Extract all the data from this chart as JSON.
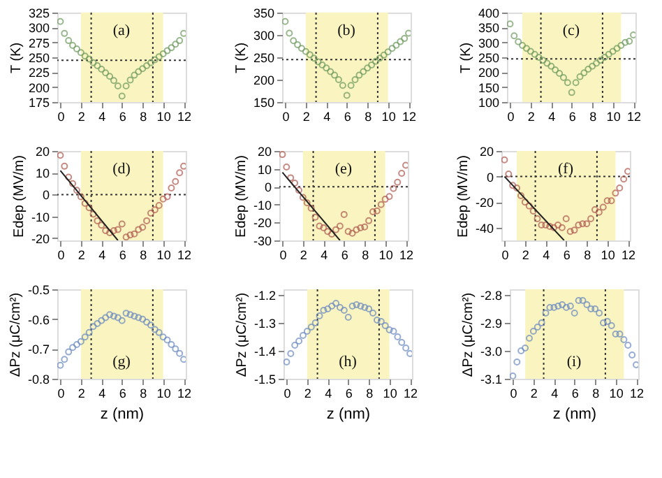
{
  "chart_data": [
    {
      "type": "scatter",
      "ylabel": "T (K)",
      "xlim": [
        -0.3,
        12.2
      ],
      "ylim": [
        175,
        325
      ],
      "xticks": [
        0,
        2,
        4,
        6,
        8,
        10,
        12
      ],
      "yticks": [
        175,
        200,
        225,
        250,
        275,
        300,
        325
      ],
      "marker": "circle",
      "annotations": [
        "(a)"
      ],
      "bands": [
        {
          "axis": "x",
          "from": 2,
          "to": 10,
          "color": "#faf5c0"
        }
      ],
      "ref_lines": [
        {
          "axis": "x",
          "value": 3,
          "line_style": "dotted",
          "color": "#333333"
        },
        {
          "axis": "x",
          "value": 9,
          "line_style": "dotted",
          "color": "#333333"
        },
        {
          "axis": "y",
          "value": 245,
          "line_style": "dotted",
          "color": "#333333"
        }
      ],
      "x": [
        0,
        0.4,
        0.8,
        1.2,
        1.6,
        2.0,
        2.4,
        2.8,
        3.2,
        3.6,
        4.0,
        4.4,
        4.8,
        5.2,
        5.6,
        6.0,
        6.4,
        6.8,
        7.2,
        7.6,
        8.0,
        8.4,
        8.8,
        9.2,
        9.6,
        10.0,
        10.4,
        10.8,
        11.2,
        11.6,
        12.0
      ],
      "series": [
        {
          "color": "#6e9a5e",
          "values": [
            310,
            290,
            278,
            270,
            264,
            258,
            252,
            247,
            241,
            236,
            230,
            224,
            218,
            211,
            202,
            185,
            202,
            212,
            220,
            226,
            231,
            236,
            241,
            246,
            251,
            256,
            261,
            266,
            272,
            278,
            290
          ]
        }
      ]
    },
    {
      "type": "scatter",
      "ylabel": "T (K)",
      "xlim": [
        -0.3,
        12.2
      ],
      "ylim": [
        150,
        350
      ],
      "xticks": [
        0,
        2,
        4,
        6,
        8,
        10,
        12
      ],
      "yticks": [
        150,
        200,
        250,
        300,
        350
      ],
      "marker": "circle",
      "annotations": [
        "(b)"
      ],
      "bands": [
        {
          "axis": "x",
          "from": 2,
          "to": 10,
          "color": "#faf5c0"
        }
      ],
      "ref_lines": [
        {
          "axis": "x",
          "value": 3,
          "line_style": "dotted",
          "color": "#333333"
        },
        {
          "axis": "x",
          "value": 9,
          "line_style": "dotted",
          "color": "#333333"
        },
        {
          "axis": "y",
          "value": 245,
          "line_style": "dotted",
          "color": "#333333"
        }
      ],
      "x": [
        0,
        0.4,
        0.8,
        1.2,
        1.6,
        2.0,
        2.4,
        2.8,
        3.2,
        3.6,
        4.0,
        4.4,
        4.8,
        5.2,
        5.6,
        6.0,
        6.4,
        6.8,
        7.2,
        7.6,
        8.0,
        8.4,
        8.8,
        9.2,
        9.6,
        10.0,
        10.4,
        10.8,
        11.2,
        11.6,
        12.0
      ],
      "series": [
        {
          "color": "#6e9a5e",
          "values": [
            330,
            304,
            287,
            278,
            270,
            263,
            256,
            248,
            240,
            233,
            226,
            218,
            210,
            200,
            187,
            165,
            187,
            200,
            210,
            218,
            226,
            233,
            241,
            248,
            255,
            262,
            270,
            277,
            285,
            292,
            304
          ]
        }
      ]
    },
    {
      "type": "scatter",
      "ylabel": "T (K)",
      "xlim": [
        -0.3,
        12.2
      ],
      "ylim": [
        100,
        400
      ],
      "xticks": [
        0,
        2,
        4,
        6,
        8,
        10,
        12
      ],
      "yticks": [
        100,
        150,
        200,
        250,
        300,
        350,
        400
      ],
      "marker": "circle",
      "annotations": [
        "(c)"
      ],
      "bands": [
        {
          "axis": "x",
          "from": 1.2,
          "to": 10.8,
          "color": "#faf5c0"
        }
      ],
      "ref_lines": [
        {
          "axis": "x",
          "value": 3,
          "line_style": "dotted",
          "color": "#333333"
        },
        {
          "axis": "x",
          "value": 9,
          "line_style": "dotted",
          "color": "#333333"
        },
        {
          "axis": "y",
          "value": 245,
          "line_style": "dotted",
          "color": "#333333"
        }
      ],
      "x": [
        0,
        0.4,
        0.8,
        1.2,
        1.6,
        2.0,
        2.4,
        2.8,
        3.2,
        3.6,
        4.0,
        4.4,
        4.8,
        5.2,
        5.6,
        6.0,
        6.4,
        6.8,
        7.2,
        7.6,
        8.0,
        8.4,
        8.8,
        9.2,
        9.6,
        10.0,
        10.4,
        10.8,
        11.2,
        11.6,
        12.0
      ],
      "series": [
        {
          "color": "#6e9a5e",
          "values": [
            362,
            322,
            302,
            290,
            280,
            270,
            260,
            250,
            240,
            230,
            220,
            208,
            196,
            182,
            165,
            132,
            165,
            185,
            198,
            210,
            220,
            230,
            240,
            250,
            260,
            270,
            280,
            290,
            300,
            304,
            325
          ]
        }
      ]
    },
    {
      "type": "scatter",
      "ylabel": "Edep (MV/m)",
      "xlim": [
        -0.3,
        12.2
      ],
      "ylim": [
        -21,
        20
      ],
      "xticks": [
        0,
        2,
        4,
        6,
        8,
        10,
        12
      ],
      "yticks": [
        -20,
        -10,
        0,
        10,
        20
      ],
      "marker": "circle",
      "annotations": [
        "(d)"
      ],
      "bands": [
        {
          "axis": "x",
          "from": 2,
          "to": 10,
          "color": "#faf5c0"
        }
      ],
      "ref_lines": [
        {
          "axis": "x",
          "value": 3,
          "line_style": "dotted",
          "color": "#333333"
        },
        {
          "axis": "x",
          "value": 9,
          "line_style": "dotted",
          "color": "#333333"
        },
        {
          "axis": "y",
          "value": 0,
          "line_style": "dotted",
          "color": "#333333"
        }
      ],
      "x": [
        0,
        0.4,
        0.8,
        1.2,
        1.6,
        2.0,
        2.4,
        2.8,
        3.2,
        3.6,
        4.0,
        4.4,
        4.8,
        5.2,
        5.6,
        6.0,
        6.4,
        6.8,
        7.2,
        7.6,
        8.0,
        8.4,
        8.8,
        9.2,
        9.6,
        10.0,
        10.4,
        10.8,
        11.2,
        11.6,
        12.0
      ],
      "series": [
        {
          "color": "#b05a50",
          "values": [
            18,
            13,
            8,
            5,
            2,
            -1,
            -4,
            -6,
            -9,
            -12,
            -14,
            -16.5,
            -17.5,
            -16.5,
            -16,
            -13.5,
            -19.5,
            -18.5,
            -18,
            -16,
            -15,
            -12,
            -8.5,
            -7,
            -5,
            -2,
            -1,
            3,
            6,
            10,
            13
          ]
        },
        {
          "type": "line",
          "marker": "none",
          "color": "#222222",
          "x": [
            0,
            5.6
          ],
          "values": [
            11,
            -21
          ]
        }
      ]
    },
    {
      "type": "scatter",
      "ylabel": "Edep (MV/m)",
      "xlim": [
        -0.3,
        12.2
      ],
      "ylim": [
        -30,
        20
      ],
      "xticks": [
        0,
        2,
        4,
        6,
        8,
        10,
        12
      ],
      "yticks": [
        -30,
        -20,
        -10,
        0,
        10,
        20
      ],
      "marker": "circle",
      "annotations": [
        "(e)"
      ],
      "bands": [
        {
          "axis": "x",
          "from": 2,
          "to": 10,
          "color": "#faf5c0"
        }
      ],
      "ref_lines": [
        {
          "axis": "x",
          "value": 3,
          "line_style": "dotted",
          "color": "#333333"
        },
        {
          "axis": "x",
          "value": 9,
          "line_style": "dotted",
          "color": "#333333"
        },
        {
          "axis": "y",
          "value": 0,
          "line_style": "dotted",
          "color": "#333333"
        }
      ],
      "x": [
        0,
        0.4,
        0.8,
        1.2,
        1.6,
        2.0,
        2.4,
        2.8,
        3.2,
        3.6,
        4.0,
        4.4,
        4.8,
        5.2,
        5.6,
        6.0,
        6.4,
        6.8,
        7.2,
        7.6,
        8.0,
        8.4,
        8.8,
        9.2,
        9.6,
        10.0,
        10.4,
        10.8,
        11.2,
        11.6,
        12.0
      ],
      "series": [
        {
          "color": "#b05a50",
          "values": [
            18,
            11,
            5,
            2,
            -2,
            -6,
            -9,
            -12,
            -17,
            -22,
            -23,
            -25,
            -26.5,
            -24,
            -22,
            -15.5,
            -25,
            -26,
            -24,
            -23,
            -22.5,
            -19,
            -14,
            -13.5,
            -10,
            -7,
            -5.5,
            -1,
            2.5,
            7.5,
            12
          ]
        },
        {
          "type": "line",
          "marker": "none",
          "color": "#222222",
          "x": [
            0,
            5.6
          ],
          "values": [
            8,
            -30
          ]
        }
      ]
    },
    {
      "type": "scatter",
      "ylabel": "Edep (MV/m)",
      "xlim": [
        -0.3,
        12.2
      ],
      "ylim": [
        -50,
        20
      ],
      "xticks": [
        0,
        2,
        4,
        6,
        8,
        10,
        12
      ],
      "yticks": [
        -40,
        -20,
        0,
        20
      ],
      "marker": "circle",
      "annotations": [
        "(f)"
      ],
      "bands": [
        {
          "axis": "x",
          "from": 1.2,
          "to": 10.8,
          "color": "#faf5c0"
        }
      ],
      "ref_lines": [
        {
          "axis": "x",
          "value": 3,
          "line_style": "dotted",
          "color": "#333333"
        },
        {
          "axis": "x",
          "value": 9,
          "line_style": "dotted",
          "color": "#333333"
        },
        {
          "axis": "y",
          "value": 0,
          "line_style": "dotted",
          "color": "#333333"
        }
      ],
      "x": [
        0,
        0.4,
        0.8,
        1.2,
        1.6,
        2.0,
        2.4,
        2.8,
        3.2,
        3.6,
        4.0,
        4.4,
        4.8,
        5.2,
        5.6,
        6.0,
        6.4,
        6.8,
        7.2,
        7.6,
        8.0,
        8.4,
        8.8,
        9.2,
        9.6,
        10.0,
        10.4,
        10.8,
        11.2,
        11.6,
        12.0
      ],
      "series": [
        {
          "color": "#b05a50",
          "values": [
            13,
            2,
            -7,
            -9,
            -15,
            -20,
            -23,
            -27,
            -33,
            -38,
            -38,
            -39,
            -40,
            -38,
            -40,
            -33,
            -43,
            -42,
            -38,
            -37,
            -37,
            -33,
            -26,
            -28,
            -24,
            -19,
            -19,
            -13,
            -9,
            -2,
            4
          ]
        },
        {
          "type": "line",
          "marker": "none",
          "color": "#222222",
          "x": [
            0,
            5.8
          ],
          "values": [
            0,
            -50
          ]
        }
      ]
    },
    {
      "type": "scatter",
      "ylabel": "ΔPz (μC/cm²)",
      "xlabel": "z (nm)",
      "xlim": [
        -0.3,
        12.2
      ],
      "ylim": [
        -0.8,
        -0.5
      ],
      "xticks": [
        0,
        2,
        4,
        6,
        8,
        10,
        12
      ],
      "yticks": [
        -0.8,
        -0.7,
        -0.6,
        -0.5
      ],
      "marker": "circle",
      "annotations": [
        "(g)"
      ],
      "bands": [
        {
          "axis": "x",
          "from": 2,
          "to": 10,
          "color": "#faf5c0"
        }
      ],
      "ref_lines": [
        {
          "axis": "x",
          "value": 3,
          "line_style": "dotted",
          "color": "#333333"
        },
        {
          "axis": "x",
          "value": 9,
          "line_style": "dotted",
          "color": "#333333"
        }
      ],
      "x": [
        0,
        0.4,
        0.8,
        1.2,
        1.6,
        2.0,
        2.4,
        2.8,
        3.2,
        3.6,
        4.0,
        4.4,
        4.8,
        5.2,
        5.6,
        6.0,
        6.4,
        6.8,
        7.2,
        7.6,
        8.0,
        8.4,
        8.8,
        9.2,
        9.6,
        10.0,
        10.4,
        10.8,
        11.2,
        11.6,
        12.0
      ],
      "series": [
        {
          "color": "#6a8ac0",
          "values": [
            -0.755,
            -0.735,
            -0.71,
            -0.695,
            -0.685,
            -0.675,
            -0.66,
            -0.645,
            -0.625,
            -0.615,
            -0.605,
            -0.595,
            -0.585,
            -0.59,
            -0.595,
            -0.605,
            -0.58,
            -0.585,
            -0.59,
            -0.595,
            -0.6,
            -0.61,
            -0.62,
            -0.635,
            -0.645,
            -0.66,
            -0.67,
            -0.685,
            -0.7,
            -0.715,
            -0.735
          ]
        }
      ]
    },
    {
      "type": "scatter",
      "ylabel": "ΔPz (μC/cm²)",
      "xlabel": "z (nm)",
      "xlim": [
        -0.3,
        12.2
      ],
      "ylim": [
        -1.5,
        -1.18
      ],
      "xticks": [
        0,
        2,
        4,
        6,
        8,
        10,
        12
      ],
      "yticks": [
        -1.5,
        -1.4,
        -1.3,
        -1.2
      ],
      "marker": "circle",
      "annotations": [
        "(h)"
      ],
      "bands": [
        {
          "axis": "x",
          "from": 2,
          "to": 10,
          "color": "#faf5c0"
        }
      ],
      "ref_lines": [
        {
          "axis": "x",
          "value": 3,
          "line_style": "dotted",
          "color": "#333333"
        },
        {
          "axis": "x",
          "value": 9,
          "line_style": "dotted",
          "color": "#333333"
        }
      ],
      "x": [
        0,
        0.4,
        0.8,
        1.2,
        1.6,
        2.0,
        2.4,
        2.8,
        3.2,
        3.6,
        4.0,
        4.4,
        4.8,
        5.2,
        5.6,
        6.0,
        6.4,
        6.8,
        7.2,
        7.6,
        8.0,
        8.4,
        8.8,
        9.2,
        9.6,
        10.0,
        10.4,
        10.8,
        11.2,
        11.6,
        12.0
      ],
      "series": [
        {
          "color": "#6a8ac0",
          "values": [
            -1.44,
            -1.41,
            -1.38,
            -1.365,
            -1.345,
            -1.33,
            -1.315,
            -1.3,
            -1.275,
            -1.255,
            -1.25,
            -1.24,
            -1.23,
            -1.245,
            -1.255,
            -1.28,
            -1.24,
            -1.235,
            -1.24,
            -1.245,
            -1.25,
            -1.265,
            -1.29,
            -1.295,
            -1.31,
            -1.325,
            -1.33,
            -1.35,
            -1.37,
            -1.39,
            -1.41
          ]
        }
      ]
    },
    {
      "type": "scatter",
      "ylabel": "ΔPz (μC/cm²)",
      "xlabel": "z (nm)",
      "xlim": [
        -0.3,
        12.2
      ],
      "ylim": [
        -3.1,
        -2.78
      ],
      "xticks": [
        0,
        2,
        4,
        6,
        8,
        10,
        12
      ],
      "yticks": [
        -3.1,
        {
          "value": -3.0,
          "label": "-3.0"
        },
        -2.9,
        -2.8
      ],
      "marker": "circle",
      "annotations": [
        "(i)"
      ],
      "bands": [
        {
          "axis": "x",
          "from": 1.2,
          "to": 10.8,
          "color": "#faf5c0"
        }
      ],
      "ref_lines": [
        {
          "axis": "x",
          "value": 3,
          "line_style": "dotted",
          "color": "#333333"
        },
        {
          "axis": "x",
          "value": 9,
          "line_style": "dotted",
          "color": "#333333"
        }
      ],
      "x": [
        0,
        0.4,
        0.8,
        1.2,
        1.6,
        2.0,
        2.4,
        2.8,
        3.2,
        3.6,
        4.0,
        4.4,
        4.8,
        5.2,
        5.6,
        6.0,
        6.4,
        6.8,
        7.2,
        7.6,
        8.0,
        8.4,
        8.8,
        9.2,
        9.6,
        10.0,
        10.4,
        10.8,
        11.2,
        11.6,
        12.0
      ],
      "series": [
        {
          "color": "#6a8ac0",
          "values": [
            -3.09,
            -3.04,
            -3.0,
            -2.99,
            -2.955,
            -2.93,
            -2.915,
            -2.9,
            -2.865,
            -2.845,
            -2.845,
            -2.84,
            -2.835,
            -2.845,
            -2.84,
            -2.865,
            -2.82,
            -2.82,
            -2.835,
            -2.85,
            -2.85,
            -2.865,
            -2.9,
            -2.895,
            -2.91,
            -2.94,
            -2.94,
            -2.96,
            -2.98,
            -3.015,
            -3.05
          ]
        }
      ]
    }
  ]
}
